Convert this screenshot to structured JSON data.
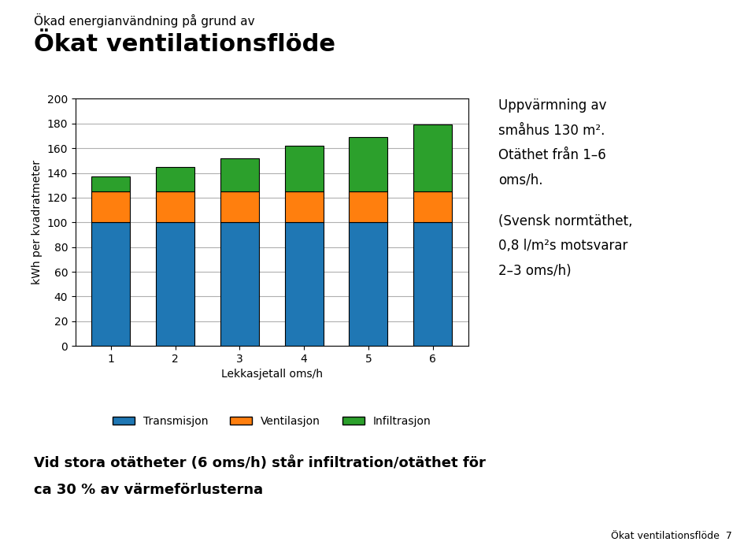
{
  "chart_data": {
    "type": "bar",
    "stacked": true,
    "subtitle": "Ökad energianvändning på grund av",
    "title": "Ökat ventilationsflöde",
    "categories": [
      "1",
      "2",
      "3",
      "4",
      "5",
      "6"
    ],
    "series": [
      {
        "name": "Transmisjon",
        "values": [
          100,
          100,
          100,
          100,
          100,
          100
        ]
      },
      {
        "name": "Ventilasjon",
        "values": [
          25,
          25,
          25,
          25,
          25,
          25
        ]
      },
      {
        "name": "Infiltrasjon",
        "values": [
          12,
          20,
          27,
          37,
          44,
          54
        ]
      }
    ],
    "xlabel": "Lekkasjetall oms/h",
    "ylabel": "kWh per kvadratmeter",
    "ylim": [
      0,
      200
    ],
    "yticks": [
      0,
      20,
      40,
      60,
      80,
      100,
      120,
      140,
      160,
      180,
      200
    ],
    "grid": true,
    "legend": "lower center",
    "annotations": [
      [
        "Uppvärmning av",
        "småhus 130 m².",
        "Otäthet från 1–6",
        "oms/h."
      ],
      [
        "(Svensk normtäthet,",
        "0,8 l/m²s motsvarar",
        "2–3 oms/h)"
      ]
    ],
    "notes": [
      "Vid stora otätheter (6 oms/h) står infiltration/otäthet för",
      "ca 30 % av värmeförlusterna"
    ],
    "footer": "Ökat ventilationsflöde  7"
  }
}
